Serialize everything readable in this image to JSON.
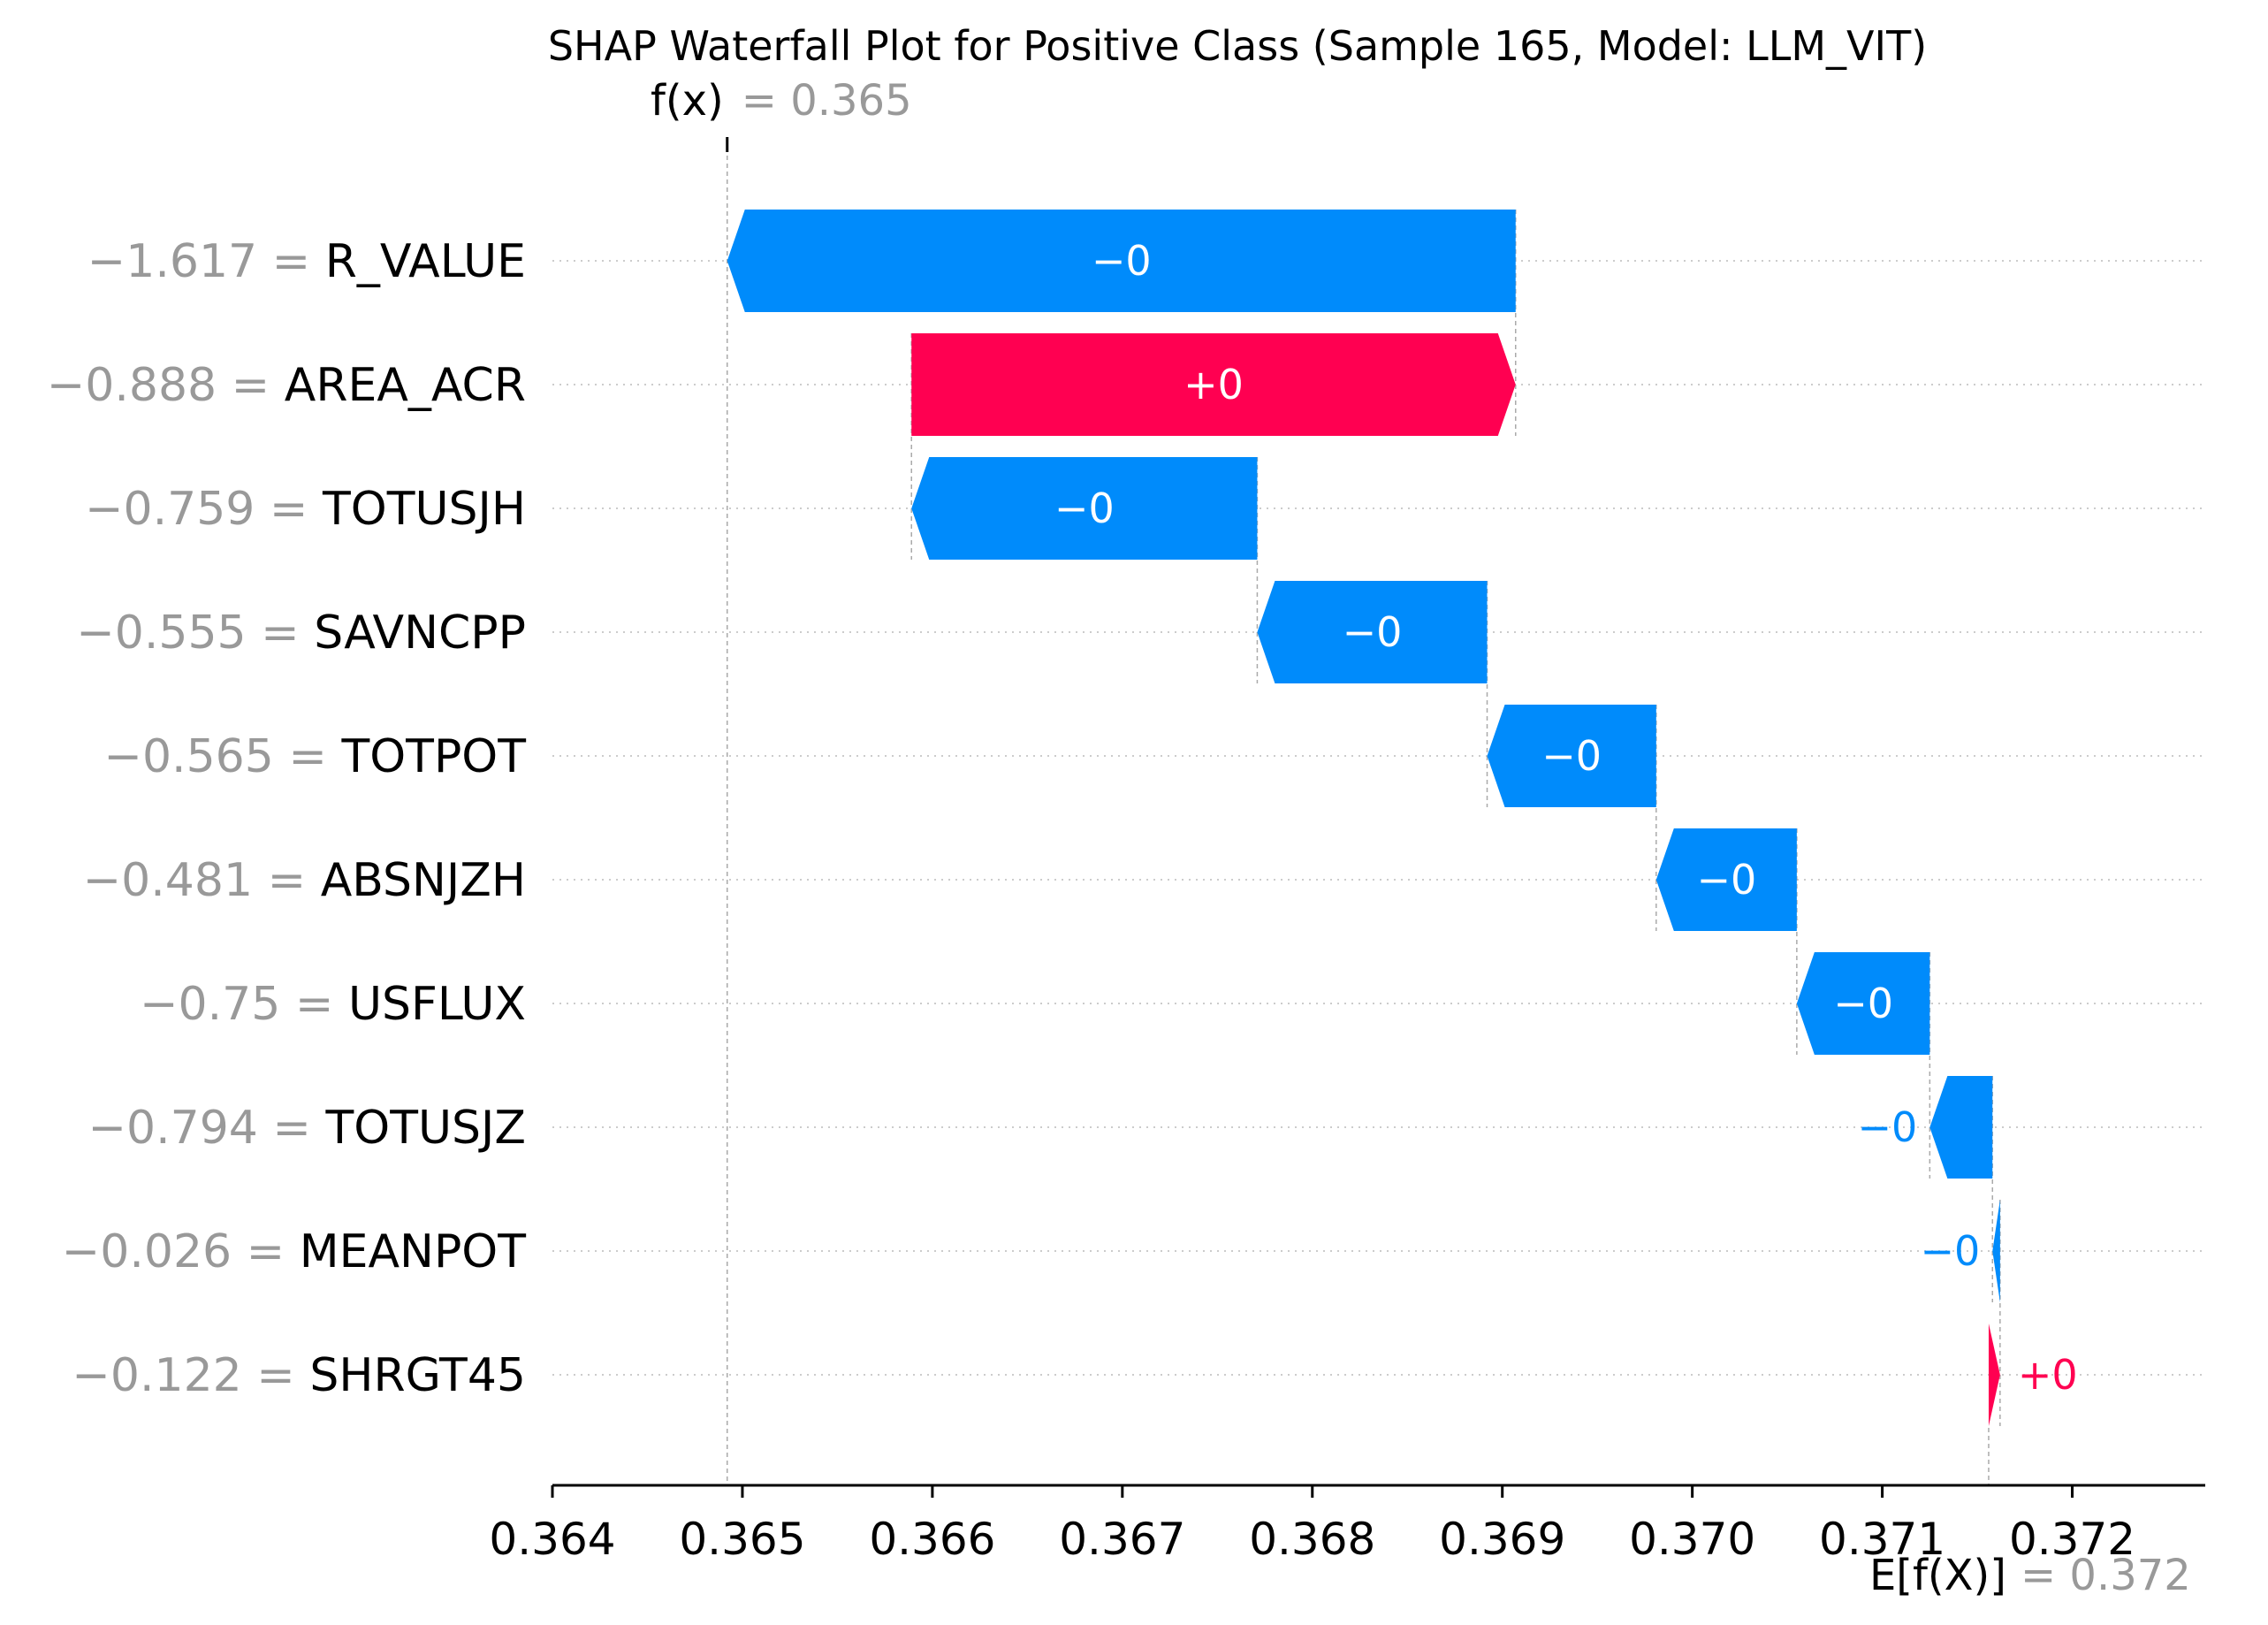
{
  "chart_data": {
    "type": "waterfall",
    "title": "SHAP Waterfall Plot for Positive Class (Sample 165, Model: LLM_VIT)",
    "fx": {
      "label": "f(x)",
      "value_text": "= 0.365",
      "value": 0.36492
    },
    "base": {
      "label": "E[f(X)]",
      "value_text": "= 0.372",
      "value": 0.37156
    },
    "xlim": [
      0.364,
      0.3727
    ],
    "xticks": [
      "0.364",
      "0.365",
      "0.366",
      "0.367",
      "0.368",
      "0.369",
      "0.370",
      "0.371",
      "0.372"
    ],
    "xtick_values": [
      0.364,
      0.365,
      0.366,
      0.367,
      0.368,
      0.369,
      0.37,
      0.371,
      0.372
    ],
    "features": [
      {
        "value_text": "−1.617 =",
        "name": "R_VALUE",
        "start": 0.36907,
        "end": 0.36492,
        "label": "−0"
      },
      {
        "value_text": "−0.888 =",
        "name": "AREA_ACR",
        "start": 0.36589,
        "end": 0.36907,
        "label": "+0"
      },
      {
        "value_text": "−0.759 =",
        "name": "TOTUSJH",
        "start": 0.36771,
        "end": 0.36589,
        "label": "−0"
      },
      {
        "value_text": "−0.555 =",
        "name": "SAVNCPP",
        "start": 0.36892,
        "end": 0.36771,
        "label": "−0"
      },
      {
        "value_text": "−0.565 =",
        "name": "TOTPOT",
        "start": 0.36981,
        "end": 0.36892,
        "label": "−0"
      },
      {
        "value_text": "−0.481 =",
        "name": "ABSNJZH",
        "start": 0.37055,
        "end": 0.36981,
        "label": "−0"
      },
      {
        "value_text": "−0.75 =",
        "name": "USFLUX",
        "start": 0.37125,
        "end": 0.37055,
        "label": "−0"
      },
      {
        "value_text": "−0.794 =",
        "name": "TOTUSJZ",
        "start": 0.37158,
        "end": 0.37125,
        "label": "−0"
      },
      {
        "value_text": "−0.026 =",
        "name": "MEANPOT",
        "start": 0.37162,
        "end": 0.37158,
        "label": "−0"
      },
      {
        "value_text": "−0.122 =",
        "name": "SHRGT45",
        "start": 0.37156,
        "end": 0.37162,
        "label": "+0"
      }
    ],
    "colors": {
      "positive": "#ff0051",
      "negative": "#008bfb",
      "gridline": "#cccccc",
      "muted": "#999999"
    }
  }
}
